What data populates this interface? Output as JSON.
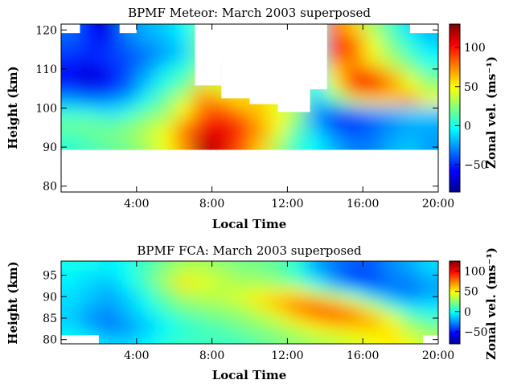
{
  "chart_data": [
    {
      "type": "heatmap",
      "title": "BPMF Meteor: March 2003 superposed",
      "xlabel": "Local Time",
      "ylabel": "Height (km)",
      "colorbar_label": "Zonal vel. (ms⁻¹)",
      "x_ticks": [
        "4:00",
        "8:00",
        "12:00",
        "16:00",
        "20:00"
      ],
      "y_ticks": [
        "80",
        "90",
        "100",
        "110",
        "120"
      ],
      "colorbar_ticks": [
        "−50",
        "0",
        "50",
        "100"
      ],
      "xlim": [
        0,
        20
      ],
      "ylim": [
        78.5,
        121.5
      ],
      "clim": [
        -85,
        130
      ],
      "x_hours": [
        0.5,
        1.5,
        2.5,
        3.5,
        4.5,
        5.5,
        6.5,
        7.5,
        8.5,
        9.5,
        10.5,
        11.5,
        12.5,
        13.5,
        14.5,
        15.5,
        16.5,
        17.5,
        18.5,
        19.5
      ],
      "y_heights": [
        120,
        117,
        114,
        111,
        108,
        105,
        102,
        99,
        96,
        93,
        90
      ],
      "values": [
        [
          -35,
          -55,
          -65,
          -30,
          -20,
          -15,
          -5,
          null,
          null,
          null,
          null,
          null,
          null,
          null,
          80,
          60,
          30,
          10,
          -10,
          -20
        ],
        [
          -40,
          -50,
          -55,
          -35,
          -25,
          -20,
          -10,
          null,
          null,
          null,
          null,
          null,
          null,
          null,
          95,
          85,
          50,
          20,
          0,
          -15
        ],
        [
          -45,
          -50,
          -45,
          -40,
          -35,
          -25,
          -15,
          null,
          null,
          null,
          null,
          null,
          null,
          null,
          100,
          80,
          45,
          25,
          10,
          -5
        ],
        [
          -55,
          -60,
          -50,
          -45,
          -30,
          -15,
          0,
          20,
          null,
          null,
          null,
          null,
          null,
          null,
          65,
          75,
          60,
          40,
          20,
          0
        ],
        [
          -60,
          -70,
          -60,
          -40,
          -20,
          0,
          10,
          30,
          null,
          null,
          null,
          null,
          null,
          null,
          55,
          90,
          95,
          70,
          40,
          20
        ],
        [
          -50,
          -60,
          -55,
          -40,
          -15,
          5,
          20,
          60,
          40,
          null,
          null,
          null,
          null,
          -5,
          40,
          95,
          105,
          70,
          50,
          30
        ],
        [
          -25,
          -35,
          -30,
          -20,
          0,
          20,
          40,
          75,
          70,
          55,
          null,
          null,
          null,
          -15,
          10,
          40,
          55,
          60,
          80,
          50
        ],
        [
          0,
          0,
          -10,
          0,
          15,
          25,
          50,
          80,
          90,
          75,
          60,
          45,
          30,
          -25,
          -40,
          -35,
          -25,
          -20,
          -10,
          -15
        ],
        [
          20,
          20,
          15,
          20,
          30,
          40,
          70,
          95,
          105,
          90,
          70,
          50,
          20,
          -25,
          -45,
          -50,
          -40,
          -30,
          -25,
          -20
        ],
        [
          10,
          15,
          20,
          25,
          35,
          50,
          80,
          110,
          110,
          95,
          70,
          40,
          10,
          -10,
          -30,
          -40,
          -35,
          -25,
          -20,
          -25
        ],
        [
          5,
          10,
          15,
          20,
          30,
          45,
          70,
          120,
          110,
          85,
          60,
          30,
          5,
          -5,
          -20,
          -30,
          -30,
          -20,
          -15,
          -25
        ]
      ],
      "masked": [
        {
          "x": [
            0,
            1
          ],
          "y": [
            119.2,
            121.5
          ]
        },
        {
          "x": [
            3.1,
            4
          ],
          "y": [
            119.2,
            121.5
          ]
        },
        {
          "x": [
            7.1,
            14.1
          ],
          "y": [
            114,
            121.5
          ]
        },
        {
          "x": [
            7.1,
            8.5
          ],
          "y": [
            105.8,
            121.5
          ]
        },
        {
          "x": [
            8.5,
            10
          ],
          "y": [
            102.5,
            121.5
          ]
        },
        {
          "x": [
            10,
            11.5
          ],
          "y": [
            101,
            121.5
          ]
        },
        {
          "x": [
            11.5,
            13.2
          ],
          "y": [
            99,
            121.5
          ]
        },
        {
          "x": [
            13.2,
            14.1
          ],
          "y": [
            104.8,
            121.5
          ]
        },
        {
          "x": [
            18.5,
            20
          ],
          "y": [
            119.2,
            121.5
          ]
        },
        {
          "x": [
            0,
            20
          ],
          "y": [
            78.5,
            89.3
          ]
        }
      ]
    },
    {
      "type": "heatmap",
      "title": "BPMF FCA: March 2003 superposed",
      "xlabel": "Local Time",
      "ylabel": "Height (km)",
      "colorbar_label": "Zonal vel. (ms⁻¹)",
      "x_ticks": [
        "4:00",
        "8:00",
        "12:00",
        "16:00",
        "20:00"
      ],
      "y_ticks": [
        "80",
        "85",
        "90",
        "95"
      ],
      "colorbar_ticks": [
        "−50",
        "0",
        "50",
        "100"
      ],
      "xlim": [
        0,
        20
      ],
      "ylim": [
        79,
        98.3
      ],
      "clim": [
        -80,
        125
      ],
      "x_hours": [
        0.5,
        1.5,
        2.5,
        3.5,
        4.5,
        5.5,
        6.5,
        7.5,
        8.5,
        9.5,
        10.5,
        11.5,
        12.5,
        13.5,
        14.5,
        15.5,
        16.5,
        17.5,
        18.5,
        19.5
      ],
      "y_heights": [
        97,
        95,
        93,
        91,
        89,
        87,
        85,
        83,
        81,
        79.5
      ],
      "values": [
        [
          0,
          0,
          -5,
          0,
          10,
          20,
          30,
          30,
          25,
          20,
          20,
          15,
          5,
          -20,
          -30,
          -35,
          -35,
          -25,
          -20,
          -10
        ],
        [
          -5,
          -10,
          -10,
          0,
          15,
          30,
          40,
          40,
          35,
          30,
          25,
          20,
          5,
          -15,
          -30,
          -45,
          -40,
          -30,
          -25,
          -15
        ],
        [
          -5,
          -10,
          -15,
          -5,
          10,
          30,
          55,
          45,
          35,
          30,
          30,
          25,
          20,
          0,
          -20,
          -40,
          -40,
          -30,
          -30,
          -25
        ],
        [
          -10,
          -15,
          -20,
          -10,
          5,
          20,
          35,
          35,
          35,
          40,
          45,
          50,
          50,
          35,
          20,
          0,
          -20,
          -30,
          -30,
          -20
        ],
        [
          -10,
          -15,
          -20,
          -15,
          0,
          15,
          25,
          30,
          35,
          40,
          55,
          65,
          70,
          65,
          55,
          40,
          15,
          -10,
          -20,
          -15
        ],
        [
          -10,
          -20,
          -25,
          -15,
          -5,
          10,
          20,
          25,
          25,
          30,
          40,
          55,
          75,
          85,
          80,
          65,
          45,
          20,
          0,
          -5
        ],
        [
          -15,
          -25,
          -30,
          -20,
          -10,
          0,
          10,
          15,
          20,
          25,
          30,
          40,
          55,
          70,
          80,
          75,
          65,
          45,
          20,
          10
        ],
        [
          -10,
          -20,
          -30,
          -25,
          -15,
          -5,
          5,
          10,
          15,
          20,
          25,
          30,
          40,
          50,
          55,
          60,
          60,
          50,
          30,
          20
        ],
        [
          -5,
          -10,
          -20,
          -20,
          -10,
          0,
          5,
          10,
          10,
          15,
          20,
          25,
          30,
          35,
          40,
          45,
          50,
          55,
          40,
          30
        ],
        [
          0,
          -5,
          -10,
          -10,
          -5,
          5,
          10,
          10,
          10,
          10,
          15,
          20,
          25,
          30,
          35,
          40,
          45,
          50,
          45,
          35
        ]
      ],
      "masked": [
        {
          "x": [
            0,
            2
          ],
          "y": [
            79,
            81
          ]
        },
        {
          "x": [
            19.2,
            20
          ],
          "y": [
            79,
            81
          ]
        }
      ]
    }
  ]
}
